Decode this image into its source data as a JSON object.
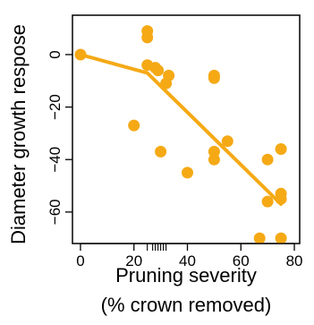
{
  "chart_data": {
    "type": "scatter",
    "xlabel_line1": "Pruning severity",
    "xlabel_line2": "(% crown removed)",
    "ylabel": "Diameter growth respose",
    "xlim": [
      -3,
      82
    ],
    "ylim": [
      -72,
      15
    ],
    "x_ticks": [
      0,
      20,
      40,
      60,
      80
    ],
    "y_ticks": [
      0,
      -20,
      -40,
      -60
    ],
    "x_rug": [
      25,
      27,
      28,
      29,
      30,
      31,
      32
    ],
    "grid": false,
    "colors": {
      "points": "#F5A915",
      "line": "#F5A915"
    },
    "points": [
      {
        "x": 0,
        "y": 0
      },
      {
        "x": 20,
        "y": -27
      },
      {
        "x": 25,
        "y": 9
      },
      {
        "x": 25,
        "y": 6.5
      },
      {
        "x": 25,
        "y": -4
      },
      {
        "x": 28,
        "y": -5
      },
      {
        "x": 29,
        "y": -6
      },
      {
        "x": 30,
        "y": -37
      },
      {
        "x": 32,
        "y": -11
      },
      {
        "x": 33,
        "y": -8
      },
      {
        "x": 40,
        "y": -45
      },
      {
        "x": 50,
        "y": -8
      },
      {
        "x": 50,
        "y": -9
      },
      {
        "x": 50,
        "y": -37
      },
      {
        "x": 50,
        "y": -40
      },
      {
        "x": 55,
        "y": -33
      },
      {
        "x": 67,
        "y": -70
      },
      {
        "x": 70,
        "y": -40
      },
      {
        "x": 70,
        "y": -56
      },
      {
        "x": 75,
        "y": -36
      },
      {
        "x": 75,
        "y": -53
      },
      {
        "x": 75,
        "y": -55
      },
      {
        "x": 75,
        "y": -70
      }
    ],
    "fit_line": [
      {
        "x": 0,
        "y": 0
      },
      {
        "x": 25,
        "y": -7
      },
      {
        "x": 75,
        "y": -57
      }
    ]
  }
}
